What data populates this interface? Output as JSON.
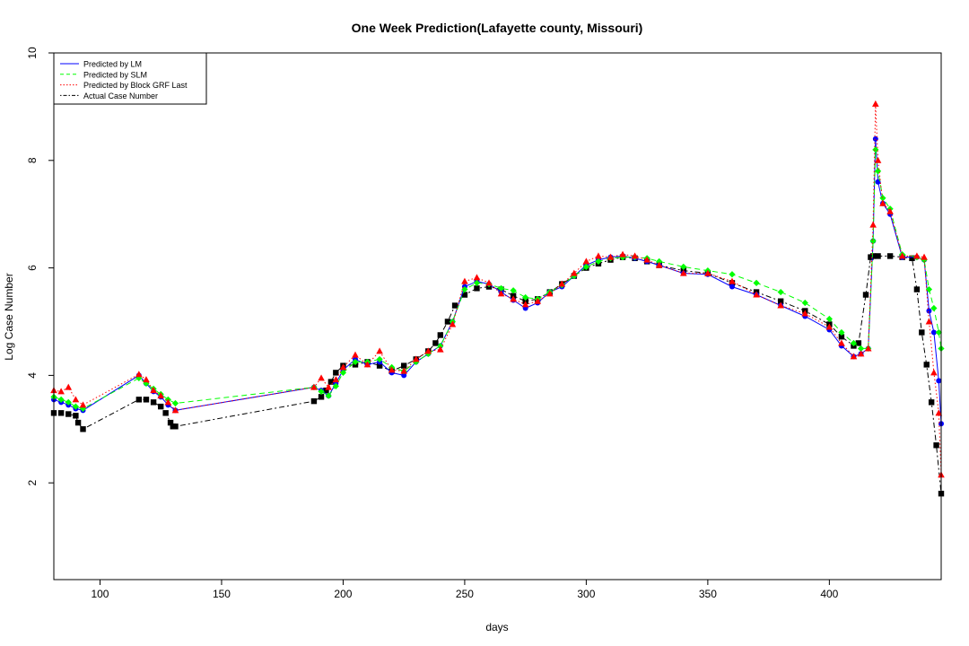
{
  "chart_data": {
    "type": "line",
    "title": "One Week Prediction(Lafayette county, Missouri)",
    "xlabel": "days",
    "ylabel": "Log Case Number",
    "xlim": [
      81,
      446
    ],
    "ylim": [
      0.2,
      10
    ],
    "xticks": [
      100,
      150,
      200,
      250,
      300,
      350,
      400
    ],
    "yticks": [
      2,
      4,
      6,
      8,
      10
    ],
    "legend_position": "top-left",
    "grid": false,
    "legend": [
      {
        "label": "Predicted by LM",
        "color": "#0000ff",
        "dash": "solid"
      },
      {
        "label": "Predicted by SLM",
        "color": "#00ff00",
        "dash": "dashed"
      },
      {
        "label": "Predicted by Block GRF Last",
        "color": "#ff0000",
        "dash": "dotted"
      },
      {
        "label": "Actual Case Number",
        "color": "#000000",
        "dash": "dotdash"
      }
    ],
    "series": [
      {
        "name": "Actual Case Number",
        "color": "#000000",
        "marker": "square",
        "dash": "2,3,6,3",
        "x": [
          81,
          84,
          87,
          90,
          91,
          93,
          116,
          119,
          122,
          125,
          127,
          129,
          130,
          131,
          188,
          191,
          193,
          195,
          197,
          200,
          205,
          210,
          215,
          220,
          225,
          230,
          235,
          238,
          240,
          243,
          246,
          250,
          255,
          260,
          265,
          270,
          275,
          280,
          285,
          290,
          295,
          300,
          305,
          310,
          315,
          320,
          325,
          330,
          340,
          350,
          360,
          370,
          380,
          390,
          400,
          405,
          410,
          412,
          415,
          417,
          418,
          420,
          425,
          430,
          434,
          436,
          438,
          440,
          442,
          444,
          446
        ],
        "y": [
          3.3,
          3.3,
          3.28,
          3.25,
          3.12,
          3.0,
          3.55,
          3.55,
          3.5,
          3.42,
          3.3,
          3.12,
          3.05,
          3.05,
          3.52,
          3.6,
          3.72,
          3.88,
          4.05,
          4.18,
          4.2,
          4.25,
          4.18,
          4.08,
          4.18,
          4.3,
          4.45,
          4.6,
          4.75,
          5.0,
          5.3,
          5.5,
          5.62,
          5.65,
          5.6,
          5.48,
          5.38,
          5.42,
          5.55,
          5.7,
          5.85,
          6.0,
          6.08,
          6.15,
          6.2,
          6.18,
          6.12,
          6.05,
          5.95,
          5.9,
          5.72,
          5.55,
          5.38,
          5.2,
          4.95,
          4.72,
          4.55,
          4.6,
          5.5,
          6.2,
          6.22,
          6.22,
          6.22,
          6.2,
          6.18,
          5.6,
          4.8,
          4.2,
          3.5,
          2.7,
          1.8
        ]
      },
      {
        "name": "Predicted by LM",
        "color": "#0000ff",
        "marker": "circle",
        "dash": "",
        "x": [
          81,
          84,
          87,
          90,
          93,
          116,
          119,
          122,
          125,
          128,
          131,
          188,
          191,
          194,
          197,
          200,
          205,
          210,
          215,
          220,
          225,
          230,
          235,
          240,
          245,
          250,
          255,
          260,
          265,
          270,
          275,
          280,
          285,
          290,
          295,
          300,
          305,
          310,
          315,
          320,
          325,
          330,
          340,
          350,
          360,
          370,
          380,
          390,
          400,
          405,
          410,
          413,
          416,
          418,
          419,
          420,
          422,
          425,
          430,
          436,
          439,
          441,
          443,
          445,
          446
        ],
        "y": [
          3.55,
          3.5,
          3.45,
          3.38,
          3.35,
          4.0,
          3.85,
          3.7,
          3.6,
          3.45,
          3.35,
          3.78,
          3.72,
          3.62,
          3.85,
          4.1,
          4.3,
          4.2,
          4.25,
          4.05,
          4.0,
          4.25,
          4.4,
          4.55,
          5.0,
          5.65,
          5.75,
          5.7,
          5.55,
          5.4,
          5.25,
          5.35,
          5.55,
          5.65,
          5.85,
          6.05,
          6.15,
          6.2,
          6.22,
          6.18,
          6.12,
          6.05,
          5.9,
          5.88,
          5.65,
          5.5,
          5.3,
          5.1,
          4.85,
          4.55,
          4.35,
          4.4,
          4.5,
          6.5,
          8.4,
          7.6,
          7.2,
          7.0,
          6.2,
          6.2,
          6.15,
          5.2,
          4.8,
          3.9,
          3.1
        ]
      },
      {
        "name": "Predicted by SLM",
        "color": "#00ff00",
        "marker": "diamond",
        "dash": "6,4",
        "x": [
          81,
          84,
          87,
          90,
          93,
          116,
          119,
          122,
          125,
          128,
          131,
          188,
          191,
          194,
          197,
          200,
          205,
          210,
          215,
          220,
          225,
          230,
          235,
          240,
          245,
          250,
          255,
          260,
          265,
          270,
          275,
          280,
          285,
          290,
          295,
          300,
          305,
          310,
          315,
          320,
          325,
          330,
          340,
          350,
          360,
          370,
          380,
          390,
          400,
          405,
          410,
          413,
          416,
          418,
          419,
          420,
          422,
          425,
          430,
          436,
          439,
          441,
          443,
          445,
          446
        ],
        "y": [
          3.6,
          3.55,
          3.5,
          3.42,
          3.38,
          3.95,
          3.85,
          3.75,
          3.65,
          3.55,
          3.48,
          3.78,
          3.7,
          3.62,
          3.8,
          4.05,
          4.25,
          4.25,
          4.3,
          4.15,
          4.08,
          4.25,
          4.4,
          4.55,
          5.0,
          5.6,
          5.72,
          5.7,
          5.62,
          5.58,
          5.45,
          5.42,
          5.55,
          5.68,
          5.85,
          6.02,
          6.12,
          6.18,
          6.2,
          6.2,
          6.18,
          6.12,
          6.02,
          5.95,
          5.88,
          5.72,
          5.55,
          5.35,
          5.05,
          4.8,
          4.6,
          4.5,
          4.5,
          6.5,
          8.2,
          7.8,
          7.3,
          7.1,
          6.25,
          6.2,
          6.15,
          5.6,
          5.25,
          4.8,
          4.5
        ]
      },
      {
        "name": "Predicted by Block GRF Last",
        "color": "#ff0000",
        "marker": "triangle",
        "dash": "1.5,2.5",
        "x": [
          81,
          84,
          87,
          90,
          93,
          116,
          119,
          122,
          125,
          128,
          131,
          188,
          191,
          194,
          197,
          200,
          205,
          210,
          215,
          220,
          225,
          230,
          235,
          240,
          245,
          250,
          255,
          260,
          265,
          270,
          275,
          280,
          285,
          290,
          295,
          300,
          305,
          310,
          315,
          320,
          325,
          330,
          340,
          350,
          360,
          370,
          380,
          390,
          400,
          405,
          410,
          413,
          416,
          418,
          419,
          420,
          422,
          425,
          430,
          436,
          439,
          441,
          443,
          445,
          446
        ],
        "y": [
          3.72,
          3.7,
          3.78,
          3.55,
          3.45,
          4.02,
          3.92,
          3.72,
          3.62,
          3.5,
          3.35,
          3.78,
          3.95,
          3.78,
          3.92,
          4.15,
          4.38,
          4.2,
          4.45,
          4.1,
          4.08,
          4.3,
          4.45,
          4.48,
          4.95,
          5.75,
          5.82,
          5.72,
          5.52,
          5.42,
          5.32,
          5.38,
          5.52,
          5.7,
          5.9,
          6.12,
          6.22,
          6.2,
          6.25,
          6.22,
          6.15,
          6.05,
          5.9,
          5.9,
          5.75,
          5.5,
          5.3,
          5.15,
          4.9,
          4.6,
          4.35,
          4.4,
          4.5,
          6.8,
          9.05,
          8.0,
          7.2,
          7.05,
          6.22,
          6.22,
          6.2,
          5.0,
          4.05,
          3.3,
          2.15
        ]
      }
    ]
  }
}
